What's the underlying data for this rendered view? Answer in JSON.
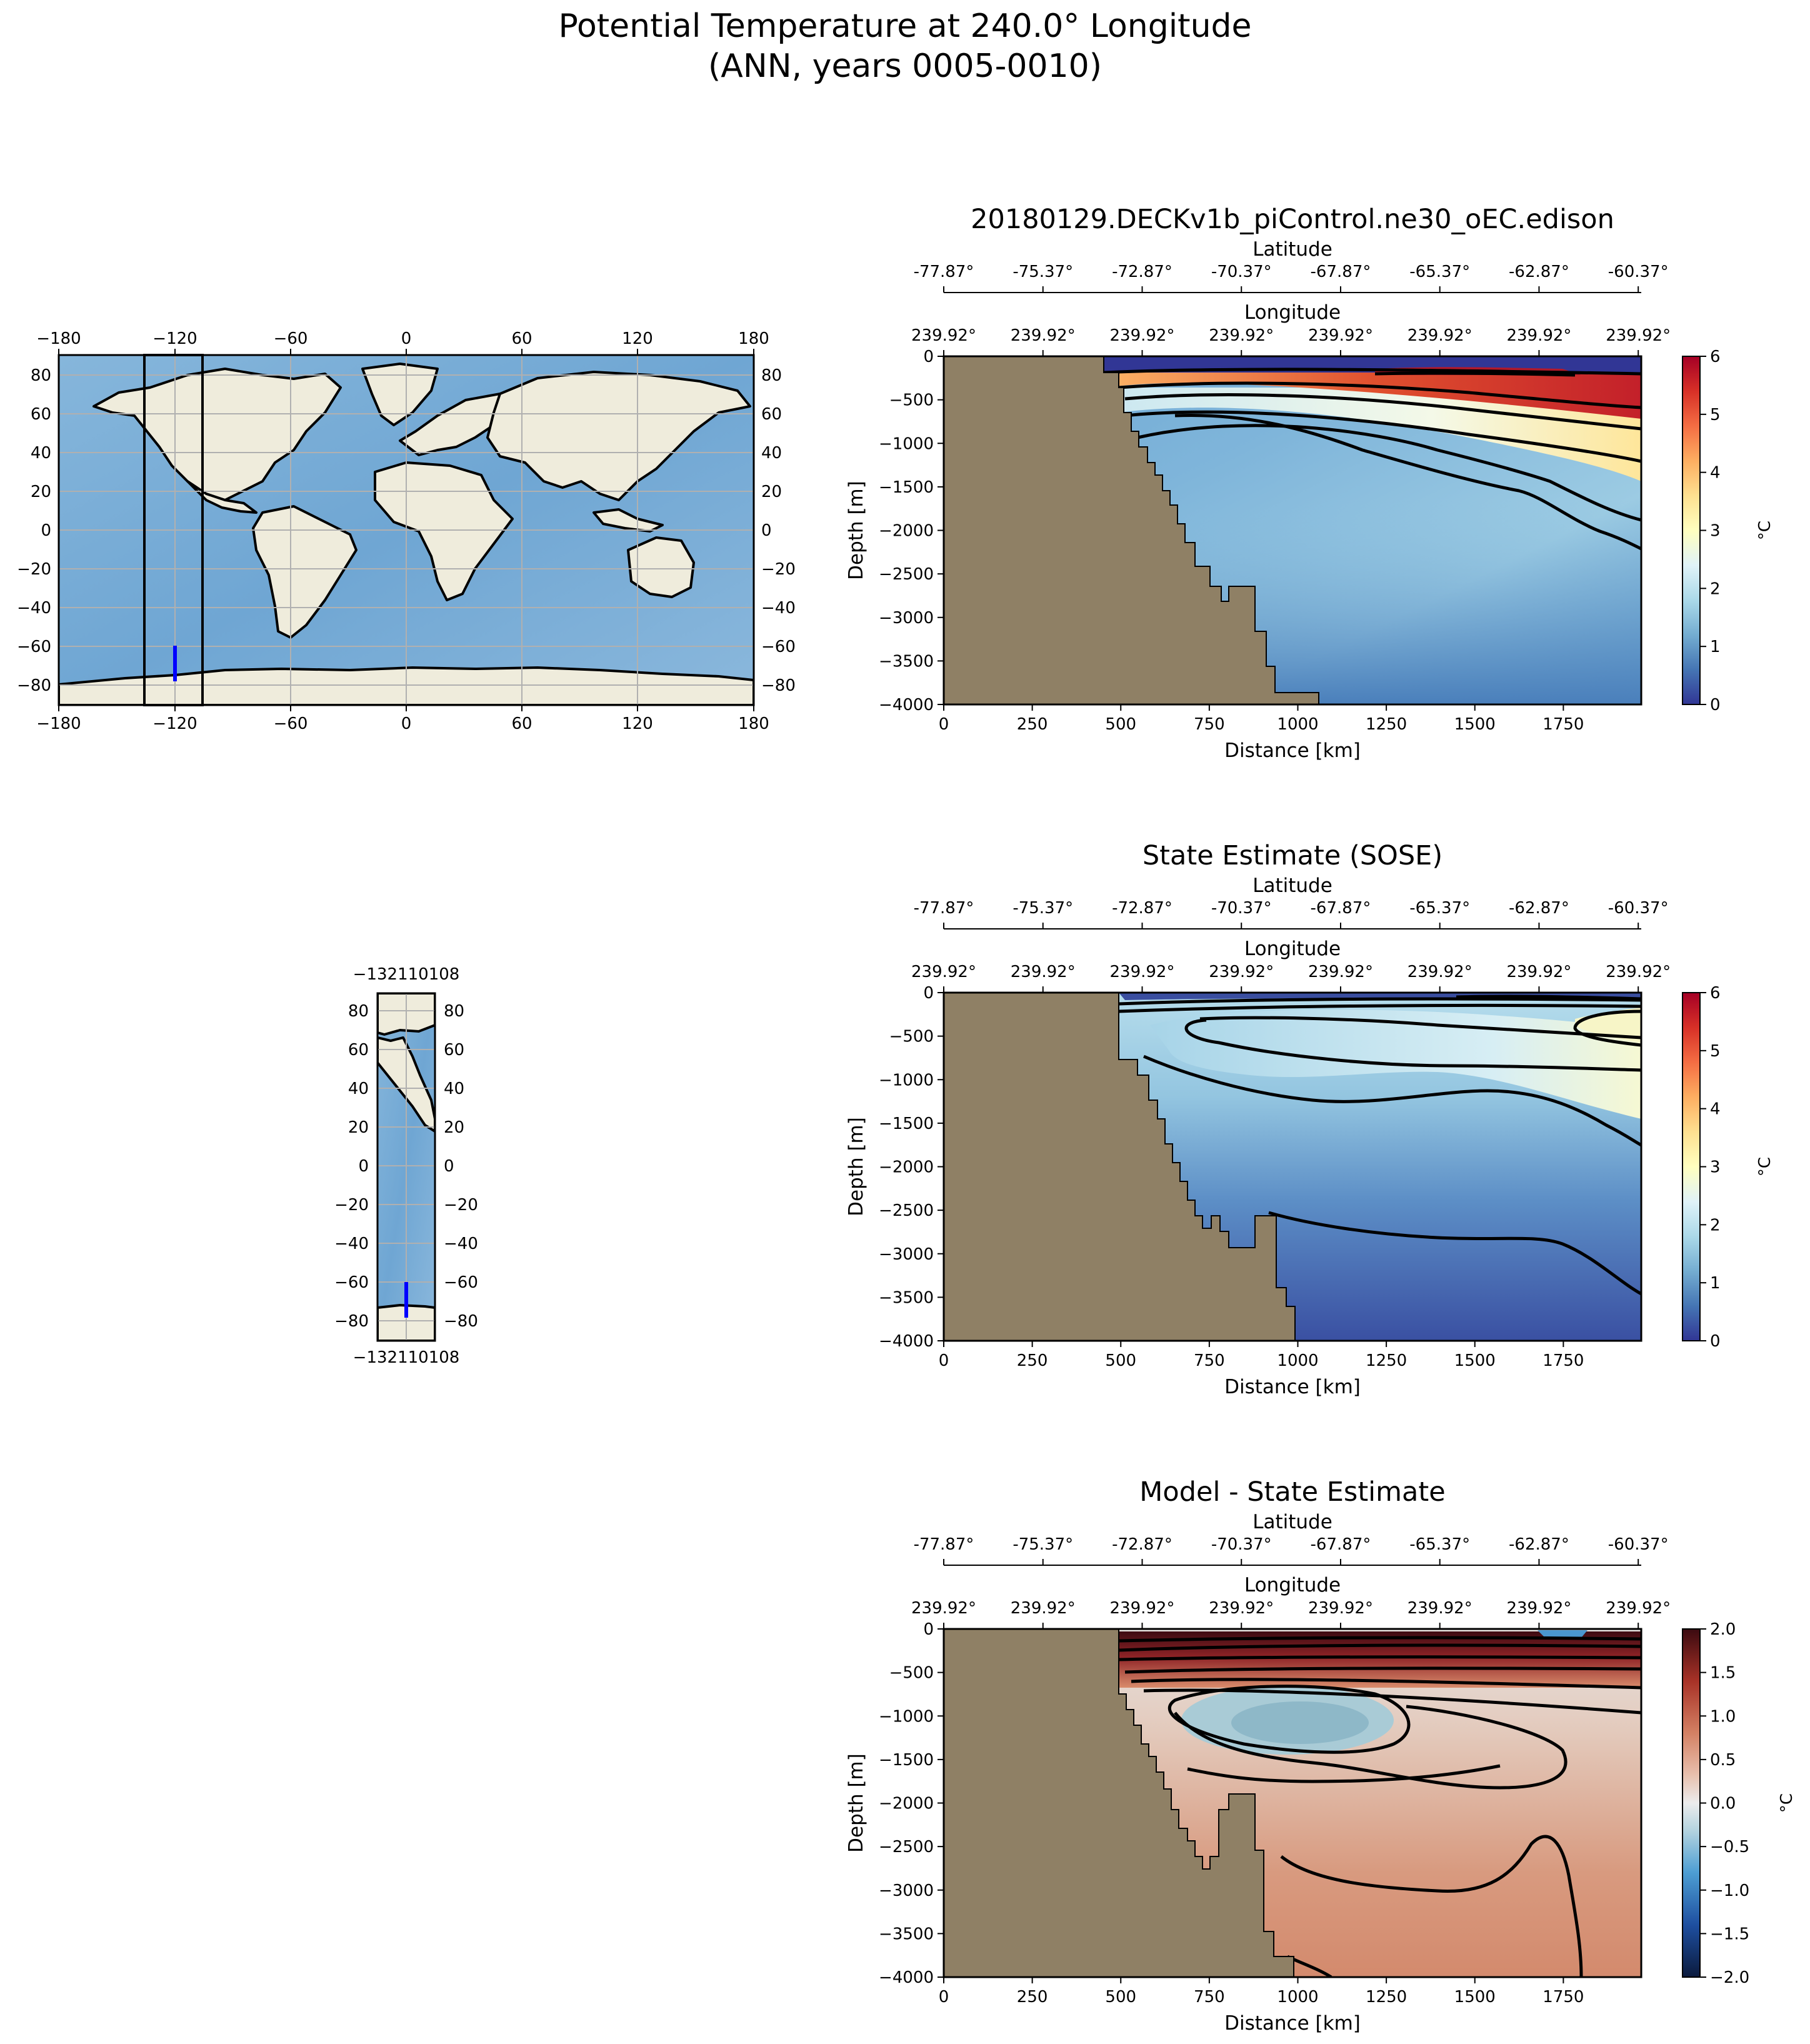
{
  "page": {
    "title_line1": "Potential Temperature at 240.0° Longitude",
    "title_line2": "(ANN, years 0005-0010)"
  },
  "colors": {
    "land": "#8f8065",
    "ocean": "#7fb3d8",
    "map_land": "#efecdc",
    "transect": "#0000ff",
    "grid": "#b0b0b0"
  },
  "world_map": {
    "lon_ticks": [
      "−180",
      "−120",
      "−60",
      "0",
      "60",
      "120",
      "180"
    ],
    "lat_ticks": [
      "80",
      "60",
      "40",
      "20",
      "0",
      "−20",
      "−40",
      "−60",
      "−80"
    ]
  },
  "inset_map": {
    "lon_tick_label": "−132110108",
    "lat_ticks": [
      "80",
      "60",
      "40",
      "20",
      "0",
      "−20",
      "−40",
      "−60",
      "−80"
    ]
  },
  "chart_data": [
    {
      "type": "heatmap",
      "title": "20180129.DECKv1b_piControl.ne30_oEC.edison",
      "xlabel": "Distance [km]",
      "ylabel": "Depth [m]",
      "top_axis1_label": "Latitude",
      "top_axis2_label": "Longitude",
      "latitude_ticks": [
        "-77.87°",
        "-75.37°",
        "-72.87°",
        "-70.37°",
        "-67.87°",
        "-65.37°",
        "-62.87°",
        "-60.37°"
      ],
      "longitude_ticks": [
        "239.92°",
        "239.92°",
        "239.92°",
        "239.92°",
        "239.92°",
        "239.92°",
        "239.92°",
        "239.92°"
      ],
      "x_ticks": [
        "0",
        "250",
        "500",
        "750",
        "1000",
        "1250",
        "1500",
        "1750"
      ],
      "y_ticks": [
        "0",
        "−500",
        "−1000",
        "−1500",
        "−2000",
        "−2500",
        "−3000",
        "−3500",
        "−4000"
      ],
      "xlim": [
        0,
        1970
      ],
      "ylim": [
        -4000,
        0
      ],
      "colorbar_label": "°C",
      "colorbar_ticks": [
        "6",
        "5",
        "4",
        "3",
        "2",
        "1",
        "0"
      ],
      "colorbar_range": [
        0,
        6
      ],
      "colormap": "RdYlBu_r"
    },
    {
      "type": "heatmap",
      "title": "State Estimate (SOSE)",
      "xlabel": "Distance [km]",
      "ylabel": "Depth [m]",
      "top_axis1_label": "Latitude",
      "top_axis2_label": "Longitude",
      "latitude_ticks": [
        "-77.87°",
        "-75.37°",
        "-72.87°",
        "-70.37°",
        "-67.87°",
        "-65.37°",
        "-62.87°",
        "-60.37°"
      ],
      "longitude_ticks": [
        "239.92°",
        "239.92°",
        "239.92°",
        "239.92°",
        "239.92°",
        "239.92°",
        "239.92°",
        "239.92°"
      ],
      "x_ticks": [
        "0",
        "250",
        "500",
        "750",
        "1000",
        "1250",
        "1500",
        "1750"
      ],
      "y_ticks": [
        "0",
        "−500",
        "−1000",
        "−1500",
        "−2000",
        "−2500",
        "−3000",
        "−3500",
        "−4000"
      ],
      "xlim": [
        0,
        1970
      ],
      "ylim": [
        -4000,
        0
      ],
      "colorbar_label": "°C",
      "colorbar_ticks": [
        "6",
        "5",
        "4",
        "3",
        "2",
        "1",
        "0"
      ],
      "colorbar_range": [
        0,
        6
      ],
      "colormap": "RdYlBu_r"
    },
    {
      "type": "heatmap",
      "title": "Model - State Estimate",
      "xlabel": "Distance [km]",
      "ylabel": "Depth [m]",
      "top_axis1_label": "Latitude",
      "top_axis2_label": "Longitude",
      "latitude_ticks": [
        "-77.87°",
        "-75.37°",
        "-72.87°",
        "-70.37°",
        "-67.87°",
        "-65.37°",
        "-62.87°",
        "-60.37°"
      ],
      "longitude_ticks": [
        "239.92°",
        "239.92°",
        "239.92°",
        "239.92°",
        "239.92°",
        "239.92°",
        "239.92°",
        "239.92°"
      ],
      "x_ticks": [
        "0",
        "250",
        "500",
        "750",
        "1000",
        "1250",
        "1500",
        "1750"
      ],
      "y_ticks": [
        "0",
        "−500",
        "−1000",
        "−1500",
        "−2000",
        "−2500",
        "−3000",
        "−3500",
        "−4000"
      ],
      "xlim": [
        0,
        1970
      ],
      "ylim": [
        -4000,
        0
      ],
      "colorbar_label": "°C",
      "colorbar_ticks": [
        "2.0",
        "1.5",
        "1.0",
        "0.5",
        "0.0",
        "−0.5",
        "−1.0",
        "−1.5",
        "−2.0"
      ],
      "colorbar_range": [
        -2,
        2
      ],
      "colormap": "RdBu_r"
    }
  ]
}
